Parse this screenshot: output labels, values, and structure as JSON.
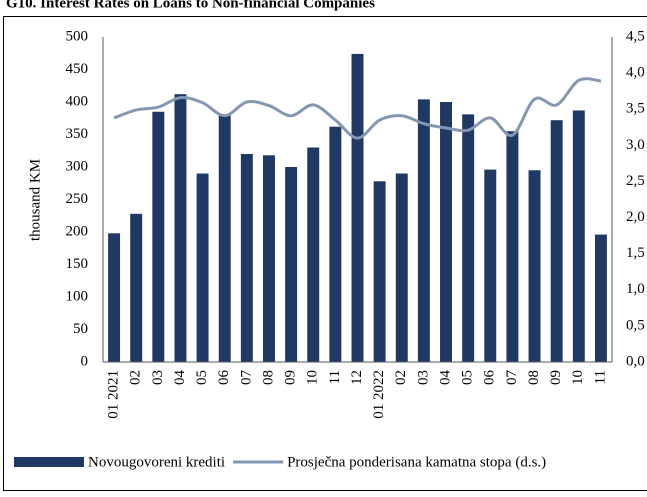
{
  "chart_data": {
    "type": "bar-line",
    "title": "G10. Interest Rates on Loans to Non-financial Companies",
    "y_label": "thousand KM",
    "categories": [
      "01 2021",
      "02",
      "03",
      "04",
      "05",
      "06",
      "07",
      "08",
      "09",
      "10",
      "11",
      "12",
      "01 2022",
      "02",
      "03",
      "04",
      "05",
      "06",
      "07",
      "08",
      "09",
      "10",
      "11"
    ],
    "series": [
      {
        "name": "Novougovoreni krediti",
        "type": "bar",
        "color": "#1f3864",
        "values": [
          198,
          228,
          385,
          412,
          290,
          380,
          320,
          318,
          300,
          330,
          362,
          474,
          278,
          290,
          404,
          400,
          381,
          296,
          355,
          295,
          372,
          387,
          196
        ]
      },
      {
        "name": "Prosječna ponderisana kamatna stopa (d.s.)",
        "type": "line",
        "color": "#8497b0",
        "axis": "y2",
        "values": [
          3.38,
          3.49,
          3.53,
          3.66,
          3.59,
          3.41,
          3.6,
          3.55,
          3.41,
          3.56,
          3.35,
          3.1,
          3.35,
          3.41,
          3.3,
          3.24,
          3.21,
          3.38,
          3.14,
          3.64,
          3.56,
          3.9,
          3.89
        ]
      }
    ],
    "ylim": [
      0,
      500
    ],
    "yticks": [
      0,
      50,
      100,
      150,
      200,
      250,
      300,
      350,
      400,
      450,
      500
    ],
    "y2lim": [
      0,
      4.5
    ],
    "y2ticks": [
      {
        "value": 0,
        "label": "0,0"
      },
      {
        "value": 0.5,
        "label": "0,5"
      },
      {
        "value": 1,
        "label": "1,0"
      },
      {
        "value": 1.5,
        "label": "1,5"
      },
      {
        "value": 2,
        "label": "2,0"
      },
      {
        "value": 2.5,
        "label": "2,5"
      },
      {
        "value": 3,
        "label": "3,0"
      },
      {
        "value": 3.5,
        "label": "3,5"
      },
      {
        "value": 4,
        "label": "4,0"
      },
      {
        "value": 4.5,
        "label": "4,5"
      }
    ],
    "grid": false,
    "legend": "bottom"
  }
}
